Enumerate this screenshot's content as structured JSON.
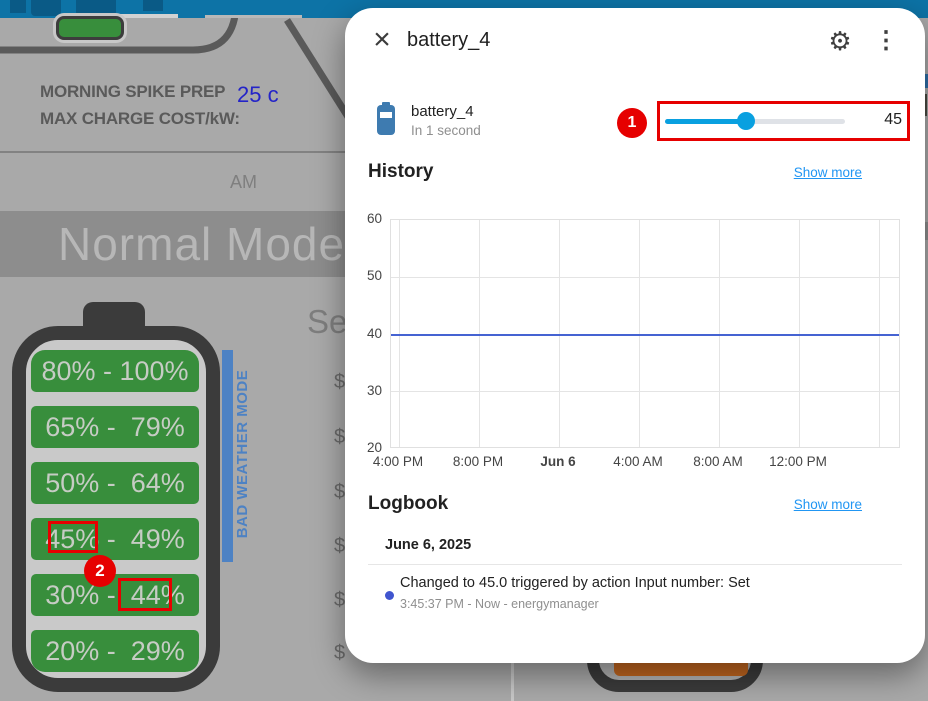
{
  "background": {
    "morning_prep_line1": "MORNING SPIKE PREP",
    "morning_prep_line2": "MAX CHARGE COST/kW:",
    "charge_cost_value": "25 c",
    "am_label": "AM",
    "mode_banner": "Normal Mode",
    "charge_battery_segments": [
      "80% - 100%",
      "65% -  79%",
      "50% -  64%",
      "45% -  49%",
      "30% -  44%",
      "20% -  29%"
    ],
    "bad_weather_label": "BAD WEATHER MODE",
    "section_heading_partial": "Se",
    "price_column_partial": [
      "$",
      "$",
      "$",
      "$",
      "$",
      "$"
    ]
  },
  "annotations": {
    "step_1": "1",
    "step_2": "2",
    "highlight_color": "#e60000"
  },
  "dialog": {
    "title": "battery_4",
    "header_glyphs": {
      "close": "×",
      "settings": "⚙",
      "menu": "⋮"
    },
    "entity": {
      "name": "battery_4",
      "secondary": "In 1 second",
      "slider_value": "45",
      "slider_percent": 45
    },
    "history": {
      "heading": "History",
      "show_more_label": "Show more"
    },
    "logbook": {
      "heading": "Logbook",
      "show_more_label": "Show more",
      "date_header": "June 6, 2025",
      "entries": [
        {
          "message": "Changed to 45.0 triggered by action Input number: Set",
          "meta": "3:45:37 PM - Now - energymanager"
        }
      ]
    }
  },
  "chart_data": {
    "type": "line",
    "title": "History",
    "series": [
      {
        "name": "battery_4",
        "values": [
          40,
          40
        ],
        "note": "constant line at 40 across entire visible range"
      }
    ],
    "x_ticks": [
      {
        "label": "4:00 PM",
        "bold": false
      },
      {
        "label": "8:00 PM",
        "bold": false
      },
      {
        "label": "Jun 6",
        "bold": true
      },
      {
        "label": "4:00 AM",
        "bold": false
      },
      {
        "label": "8:00 AM",
        "bold": false
      },
      {
        "label": "12:00 PM",
        "bold": false
      }
    ],
    "y_ticks": [
      20,
      30,
      40,
      50,
      60
    ],
    "ylim": [
      20,
      60
    ],
    "grid": true,
    "legend": false,
    "line_color": "#4563d2"
  }
}
